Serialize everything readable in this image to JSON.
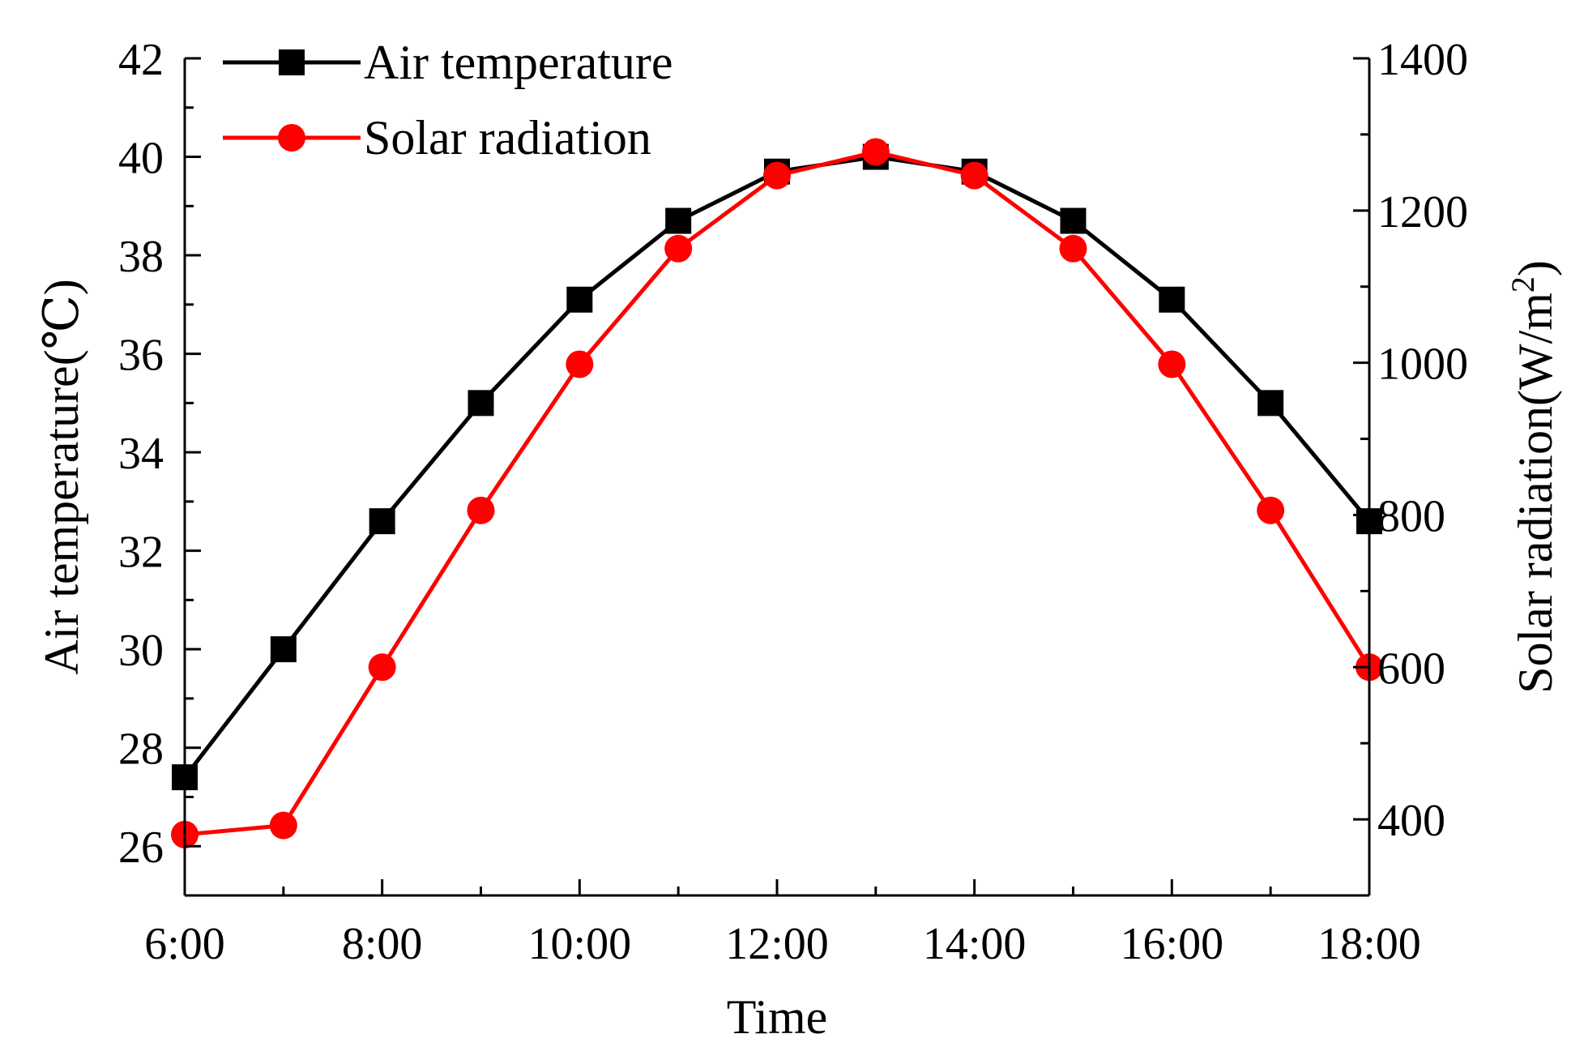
{
  "chart_data": {
    "type": "line",
    "title": "",
    "xlabel": "Time",
    "ylabel_left": "Air temperature(℃)",
    "ylabel_right_prefix": "Solar radiation(W/m",
    "ylabel_right_sup": "2",
    "ylabel_right_suffix": ")",
    "x_ticks": [
      "6:00",
      "8:00",
      "10:00",
      "12:00",
      "14:00",
      "16:00",
      "18:00"
    ],
    "y_left_ticks": [
      "26",
      "28",
      "30",
      "32",
      "34",
      "36",
      "38",
      "40",
      "42"
    ],
    "y_right_ticks": [
      "400",
      "600",
      "800",
      "1000",
      "1200",
      "1400"
    ],
    "x_hours": [
      6,
      7,
      8,
      9,
      10,
      11,
      12,
      13,
      14,
      15,
      16,
      17,
      18
    ],
    "xlim": [
      6,
      18
    ],
    "ylim_left": [
      25,
      42
    ],
    "ylim_right": [
      300,
      1400
    ],
    "series": [
      {
        "name": "Air temperature",
        "axis": "left",
        "color": "#000000",
        "marker": "square",
        "values": [
          27.4,
          30.0,
          32.6,
          35.0,
          37.1,
          38.7,
          39.7,
          40.0,
          39.7,
          38.7,
          37.1,
          35.0,
          32.6
        ]
      },
      {
        "name": "Solar radiation",
        "axis": "right",
        "color": "#ff0000",
        "marker": "circle",
        "values": [
          380,
          392,
          600,
          806,
          998,
          1150,
          1246,
          1277,
          1246,
          1150,
          998,
          806,
          600
        ]
      }
    ],
    "legend_position": "top-left",
    "grid": false
  }
}
